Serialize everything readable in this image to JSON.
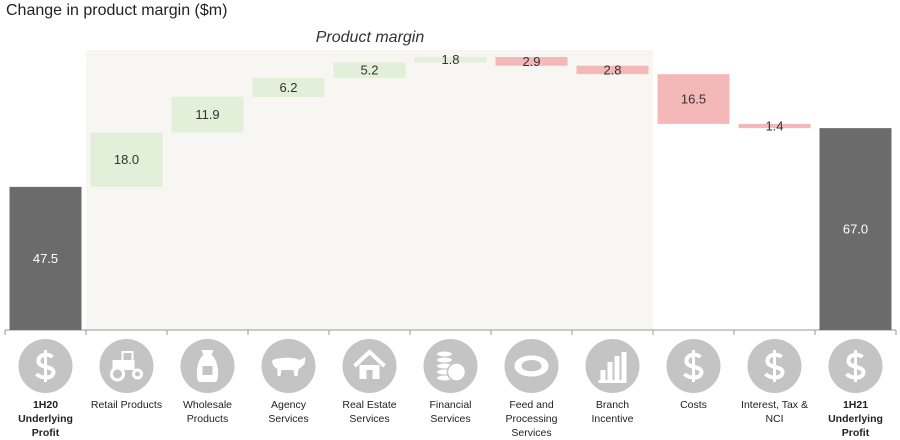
{
  "chart_data": {
    "type": "waterfall",
    "title": "Change in product margin ($m)",
    "annotation": "Product margin",
    "categories": [
      "1H20 Underlying Profit",
      "Retail Products",
      "Wholesale Products",
      "Agency Services",
      "Real Estate Services",
      "Financial Services",
      "Feed and Processing Services",
      "Branch Incentive",
      "Costs",
      "Interest, Tax & NCI",
      "1H21 Underlying Profit"
    ],
    "measure": [
      "total",
      "relative",
      "relative",
      "relative",
      "relative",
      "relative",
      "relative",
      "relative",
      "relative",
      "relative",
      "total"
    ],
    "values": [
      47.5,
      18.0,
      11.9,
      6.2,
      5.2,
      1.8,
      -2.9,
      -2.8,
      -16.5,
      -1.4,
      67.0
    ],
    "value_labels": [
      "47.5",
      "18.0",
      "11.9",
      "6.2",
      "5.2",
      "1.8",
      "2.9",
      "2.8",
      "16.5",
      "1.4",
      "67.0"
    ],
    "colors": {
      "total": "#6b6b6b",
      "increase": "#e2efd9",
      "decrease": "#f4b8b8"
    }
  }
}
